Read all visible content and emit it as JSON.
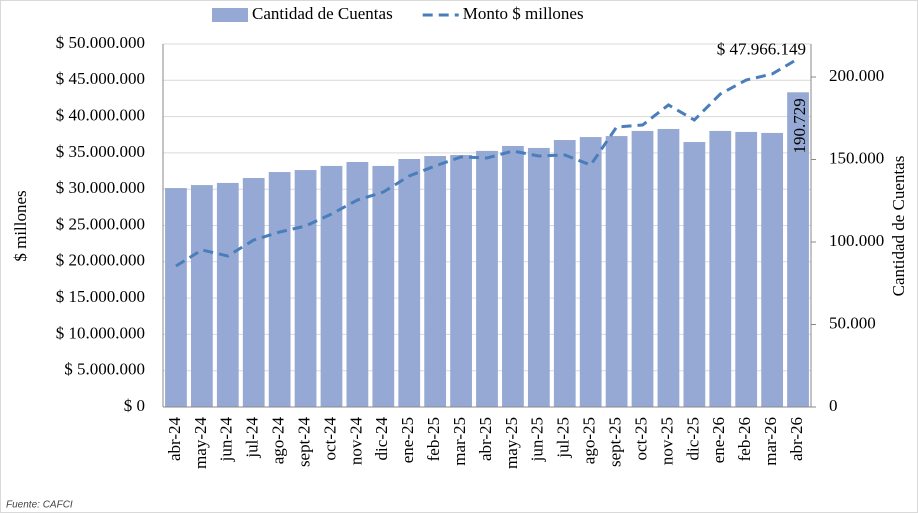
{
  "chart_data": {
    "type": "bar-line",
    "y_label": "$ millones",
    "y2_label": "Cantidad de Cuentas",
    "source": "Fuente: CAFCI",
    "categories": [
      "abr-24",
      "may-24",
      "jun-24",
      "jul-24",
      "ago-24",
      "sept-24",
      "oct-24",
      "nov-24",
      "dic-24",
      "ene-25",
      "feb-25",
      "mar-25",
      "abr-25",
      "may-25",
      "jun-25",
      "jul-25",
      "ago-25",
      "sept-25",
      "oct-25",
      "nov-25",
      "dic-25",
      "ene-26",
      "feb-26",
      "mar-26",
      "abr-26"
    ],
    "series": [
      {
        "name": "Cantidad de Cuentas",
        "type": "bar",
        "axis": "y2",
        "color": "#95a9d4",
        "values": [
          132700,
          134500,
          135800,
          138800,
          142400,
          143600,
          146100,
          148500,
          146100,
          150300,
          152100,
          152700,
          155200,
          158200,
          157000,
          161800,
          163600,
          164200,
          167300,
          168500,
          160600,
          167300,
          166700,
          166100,
          190729
        ],
        "value_labels": [
          null,
          null,
          null,
          null,
          null,
          null,
          null,
          null,
          null,
          null,
          null,
          null,
          null,
          null,
          null,
          null,
          null,
          null,
          null,
          null,
          null,
          null,
          null,
          null,
          "190.729"
        ]
      },
      {
        "name": "Monto $ millones",
        "type": "line",
        "axis": "y",
        "color": "#4a7ebb",
        "dashed": true,
        "values": [
          19420000,
          21630000,
          20800000,
          23000000,
          24100000,
          24930000,
          26580000,
          28510000,
          29610000,
          31820000,
          33200000,
          34440000,
          34300000,
          35260000,
          34570000,
          34710000,
          33330000,
          38570000,
          38840000,
          41600000,
          39530000,
          43110000,
          45040000,
          45870000,
          47966149
        ],
        "value_labels": [
          null,
          null,
          null,
          null,
          null,
          null,
          null,
          null,
          null,
          null,
          null,
          null,
          null,
          null,
          null,
          null,
          null,
          null,
          null,
          null,
          null,
          null,
          null,
          null,
          "$ 47.966.149"
        ]
      }
    ],
    "ylim": [
      0,
      50000000
    ],
    "yticks": [
      {
        "value": 0,
        "label": "$ 0"
      },
      {
        "value": 5000000,
        "label": "$ 5.000.000"
      },
      {
        "value": 10000000,
        "label": "$ 10.000.000"
      },
      {
        "value": 15000000,
        "label": "$ 15.000.000"
      },
      {
        "value": 20000000,
        "label": "$ 20.000.000"
      },
      {
        "value": 25000000,
        "label": "$ 25.000.000"
      },
      {
        "value": 30000000,
        "label": "$ 30.000.000"
      },
      {
        "value": 35000000,
        "label": "$ 35.000.000"
      },
      {
        "value": 40000000,
        "label": "$ 40.000.000"
      },
      {
        "value": 45000000,
        "label": "$ 45.000.000"
      },
      {
        "value": 50000000,
        "label": "$ 50.000.000"
      }
    ],
    "y2lim": [
      0,
      220000
    ],
    "y2ticks": [
      0,
      {
        "value": 50000,
        "label": "50.000"
      },
      {
        "value": 100000,
        "label": "100.000"
      },
      {
        "value": 150000,
        "label": "150.000"
      },
      {
        "value": 200000,
        "label": "200.000"
      }
    ],
    "grid": true,
    "legend": "top"
  }
}
